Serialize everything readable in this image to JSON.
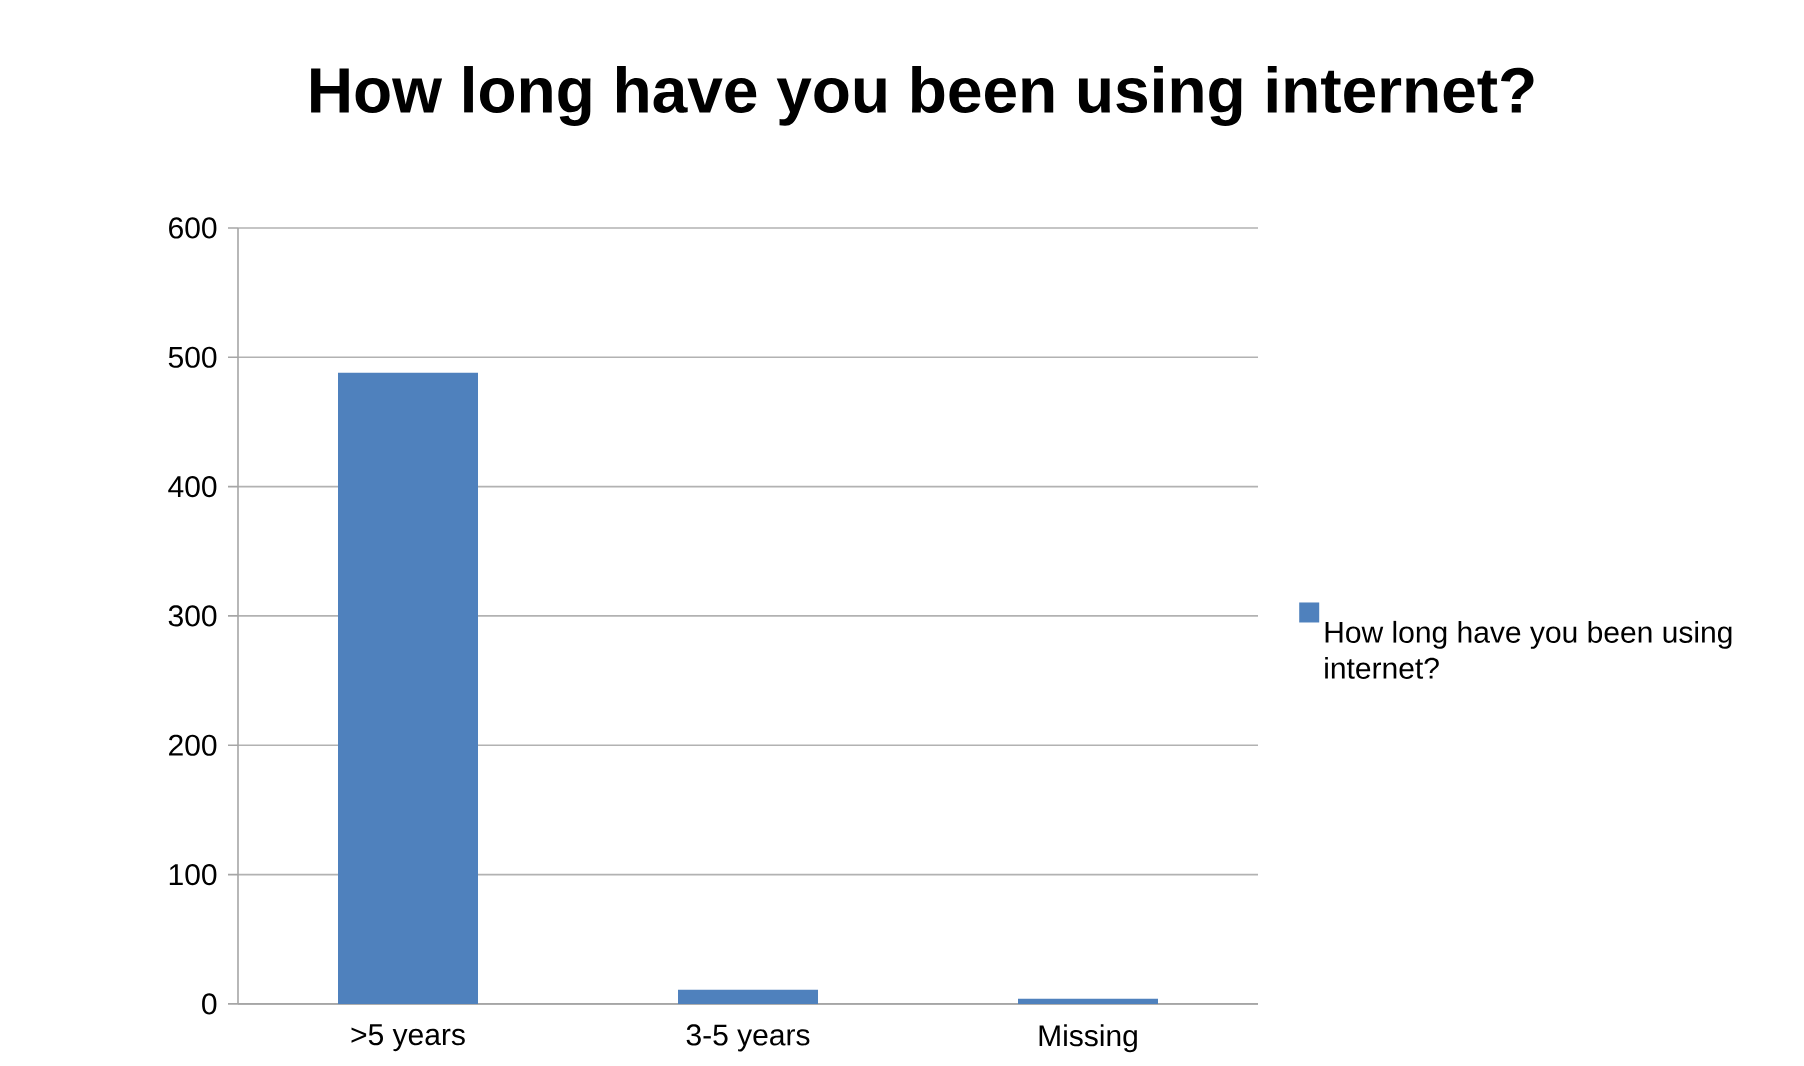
{
  "chart_data": {
    "type": "bar",
    "title": "How long have you been using internet?",
    "categories": [
      ">5 years",
      "3-5 years",
      "Missing"
    ],
    "series": [
      {
        "name": "How long have you been using internet?",
        "color": "#4f81bd",
        "values": [
          488,
          11,
          4
        ]
      }
    ],
    "ylim": [
      0,
      600
    ],
    "yticks": [
      0,
      100,
      200,
      300,
      400,
      500,
      600
    ],
    "grid": "y",
    "legend": "right"
  }
}
